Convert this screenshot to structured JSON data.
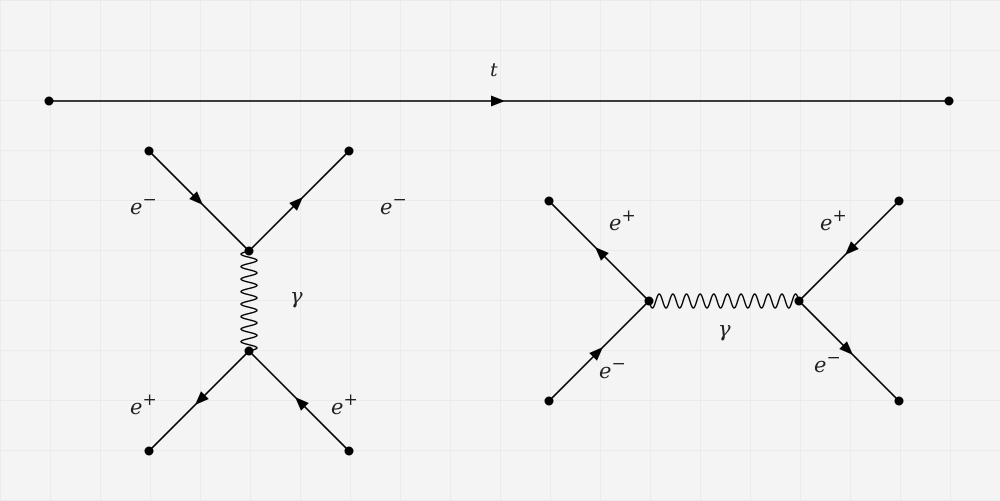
{
  "time_axis": {
    "label": "t"
  },
  "scattering_diagram": {
    "top_left_label": "e",
    "top_left_sign": "−",
    "top_right_label": "e",
    "top_right_sign": "−",
    "photon_label": "γ",
    "bottom_left_label": "e",
    "bottom_left_sign": "+",
    "bottom_right_label": "e",
    "bottom_right_sign": "+"
  },
  "annihilation_diagram": {
    "top_left_label": "e",
    "top_left_sign": "+",
    "top_right_label": "e",
    "top_right_sign": "+",
    "photon_label": "γ",
    "bottom_left_label": "e",
    "bottom_left_sign": "−",
    "bottom_right_label": "e",
    "bottom_right_sign": "−"
  },
  "colors": {
    "background": "#f4f4f4",
    "grid": "#e2e2e2",
    "ink": "#000000"
  }
}
